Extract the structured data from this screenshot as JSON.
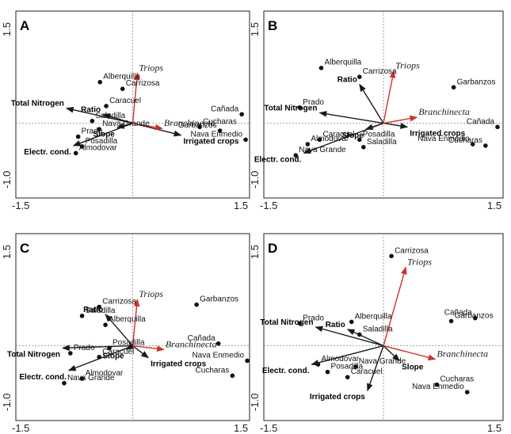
{
  "chart_data": [
    {
      "type": "scatter",
      "panel": "A",
      "xlim": [
        -1.5,
        1.5
      ],
      "ylim": [
        -1.0,
        1.5
      ],
      "x_ticks": [
        "-1.5",
        "1.5"
      ],
      "y_ticks": [
        "1.5",
        "-1.0"
      ],
      "sites": [
        {
          "name": "Alberquilla",
          "x": -0.42,
          "y": 0.55
        },
        {
          "name": "Carrizosa",
          "x": -0.13,
          "y": 0.46
        },
        {
          "name": "Caracuel",
          "x": -0.34,
          "y": 0.23
        },
        {
          "name": "Saladilla",
          "x": -0.52,
          "y": 0.03
        },
        {
          "name": "Nava Grande",
          "x": -0.43,
          "y": -0.08
        },
        {
          "name": "Prado",
          "x": -0.7,
          "y": -0.18
        },
        {
          "name": "Posadilla",
          "x": -0.65,
          "y": -0.31
        },
        {
          "name": "Almodovar",
          "x": -0.73,
          "y": -0.4
        },
        {
          "name": "Cañada",
          "x": 1.4,
          "y": 0.12
        },
        {
          "name": "Cucharas",
          "x": 0.86,
          "y": -0.05
        },
        {
          "name": "Garbanzos",
          "x": 1.12,
          "y": -0.1
        },
        {
          "name": "Nava Enmedio",
          "x": 1.45,
          "y": -0.22
        }
      ],
      "env_vectors": [
        {
          "name": "Total Nitrogen",
          "x": -0.85,
          "y": 0.2
        },
        {
          "name": "Ratio",
          "x": -0.38,
          "y": 0.12
        },
        {
          "name": "Slope",
          "x": -0.2,
          "y": -0.06
        },
        {
          "name": "Electr. cond.",
          "x": -0.76,
          "y": -0.3
        },
        {
          "name": "Irrigated crops",
          "x": 0.62,
          "y": -0.16
        }
      ],
      "species_vectors": [
        {
          "name": "Triops",
          "x": 0.06,
          "y": 0.67
        },
        {
          "name": "Branchinecta",
          "x": 0.38,
          "y": -0.07
        }
      ]
    },
    {
      "type": "scatter",
      "panel": "B",
      "xlim": [
        -1.5,
        1.5
      ],
      "ylim": [
        -1.0,
        1.5
      ],
      "x_ticks": [
        "-1.5",
        "1.5"
      ],
      "y_ticks": [
        "1.5",
        "-1.0"
      ],
      "sites": [
        {
          "name": "Alberquilla",
          "x": -0.78,
          "y": 0.74
        },
        {
          "name": "Carrizosa",
          "x": -0.3,
          "y": 0.62
        },
        {
          "name": "Garbanzos",
          "x": 0.88,
          "y": 0.48
        },
        {
          "name": "Prado",
          "x": -1.05,
          "y": 0.21
        },
        {
          "name": "Caracuel",
          "x": -0.8,
          "y": -0.22
        },
        {
          "name": "Posadilla",
          "x": -0.3,
          "y": -0.22
        },
        {
          "name": "Almodovar",
          "x": -0.95,
          "y": -0.28
        },
        {
          "name": "Saladilla",
          "x": -0.25,
          "y": -0.32
        },
        {
          "name": "Nava Grande",
          "x": -1.1,
          "y": -0.43
        },
        {
          "name": "Cañada",
          "x": 1.43,
          "y": -0.05
        },
        {
          "name": "Nava Enmedio",
          "x": 1.12,
          "y": -0.28
        },
        {
          "name": "Cucharas",
          "x": 1.28,
          "y": -0.3
        }
      ],
      "env_vectors": [
        {
          "name": "Ratio",
          "x": -0.3,
          "y": 0.52
        },
        {
          "name": "Total Nitrogen",
          "x": -0.8,
          "y": 0.14
        },
        {
          "name": "Slope",
          "x": -0.22,
          "y": -0.08
        },
        {
          "name": "Electr. cond.",
          "x": -1.0,
          "y": -0.4
        },
        {
          "name": "Irrigated crops",
          "x": 0.3,
          "y": -0.05
        }
      ],
      "species_vectors": [
        {
          "name": "Triops",
          "x": 0.13,
          "y": 0.7
        },
        {
          "name": "Branchinecta",
          "x": 0.42,
          "y": 0.08
        }
      ]
    },
    {
      "type": "scatter",
      "panel": "C",
      "xlim": [
        -1.5,
        1.5
      ],
      "ylim": [
        -1.0,
        1.5
      ],
      "x_ticks": [
        "-1.5",
        "1.5"
      ],
      "y_ticks": [
        "1.5",
        "-1.0"
      ],
      "sites": [
        {
          "name": "Carrizosa",
          "x": -0.43,
          "y": 0.52
        },
        {
          "name": "Garbanzos",
          "x": 0.82,
          "y": 0.55
        },
        {
          "name": "Saladilla",
          "x": -0.65,
          "y": 0.4
        },
        {
          "name": "Alberquilla",
          "x": -0.35,
          "y": 0.28
        },
        {
          "name": "Cañada",
          "x": 1.1,
          "y": 0.03
        },
        {
          "name": "Prado",
          "x": -0.8,
          "y": -0.1
        },
        {
          "name": "Posadilla",
          "x": -0.3,
          "y": -0.03
        },
        {
          "name": "Caracuel",
          "x": -0.43,
          "y": -0.15
        },
        {
          "name": "Nava Enmedio",
          "x": 1.47,
          "y": -0.2
        },
        {
          "name": "Cucharas",
          "x": 1.28,
          "y": -0.4
        },
        {
          "name": "Almodovar",
          "x": -0.65,
          "y": -0.44
        },
        {
          "name": "Nava Grande",
          "x": -0.88,
          "y": -0.5
        }
      ],
      "env_vectors": [
        {
          "name": "Ratio",
          "x": -0.35,
          "y": 0.42
        },
        {
          "name": "Total Nitrogen",
          "x": -0.9,
          "y": -0.03
        },
        {
          "name": "Slope",
          "x": -0.08,
          "y": -0.05
        },
        {
          "name": "Electr. cond.",
          "x": -0.82,
          "y": -0.33
        },
        {
          "name": "Irrigated crops",
          "x": 0.2,
          "y": -0.16
        }
      ],
      "species_vectors": [
        {
          "name": "Triops",
          "x": 0.06,
          "y": 0.62
        },
        {
          "name": "Branchinecta",
          "x": 0.4,
          "y": -0.05
        }
      ]
    },
    {
      "type": "scatter",
      "panel": "D",
      "xlim": [
        -1.5,
        1.5
      ],
      "ylim": [
        -1.0,
        1.5
      ],
      "x_ticks": [
        "-1.5",
        "1.5"
      ],
      "y_ticks": [
        "1.5",
        "-1.0"
      ],
      "sites": [
        {
          "name": "Carrizosa",
          "x": 0.1,
          "y": 1.2
        },
        {
          "name": "Prado",
          "x": -1.05,
          "y": 0.3
        },
        {
          "name": "Alberquilla",
          "x": -0.4,
          "y": 0.32
        },
        {
          "name": "Saladilla",
          "x": -0.3,
          "y": 0.15
        },
        {
          "name": "Cañada",
          "x": 1.15,
          "y": 0.37
        },
        {
          "name": "Garbanzos",
          "x": 0.85,
          "y": 0.33
        },
        {
          "name": "Almodovar",
          "x": -0.82,
          "y": -0.25
        },
        {
          "name": "Nava Grande",
          "x": -0.35,
          "y": -0.28
        },
        {
          "name": "Posadilla",
          "x": -0.7,
          "y": -0.35
        },
        {
          "name": "Caracuel",
          "x": -0.45,
          "y": -0.42
        },
        {
          "name": "Cucharas",
          "x": 0.67,
          "y": -0.52
        },
        {
          "name": "Nava Enmedio",
          "x": 1.05,
          "y": -0.62
        }
      ],
      "env_vectors": [
        {
          "name": "Total Nitrogen",
          "x": -0.85,
          "y": 0.25
        },
        {
          "name": "Ratio",
          "x": -0.45,
          "y": 0.22
        },
        {
          "name": "Electr. cond.",
          "x": -0.9,
          "y": -0.25
        },
        {
          "name": "Slope",
          "x": 0.2,
          "y": -0.2
        },
        {
          "name": "Irrigated crops",
          "x": -0.2,
          "y": -0.6
        }
      ],
      "species_vectors": [
        {
          "name": "Triops",
          "x": 0.28,
          "y": 1.05
        },
        {
          "name": "Branchinecta",
          "x": 0.65,
          "y": -0.18
        }
      ]
    }
  ]
}
